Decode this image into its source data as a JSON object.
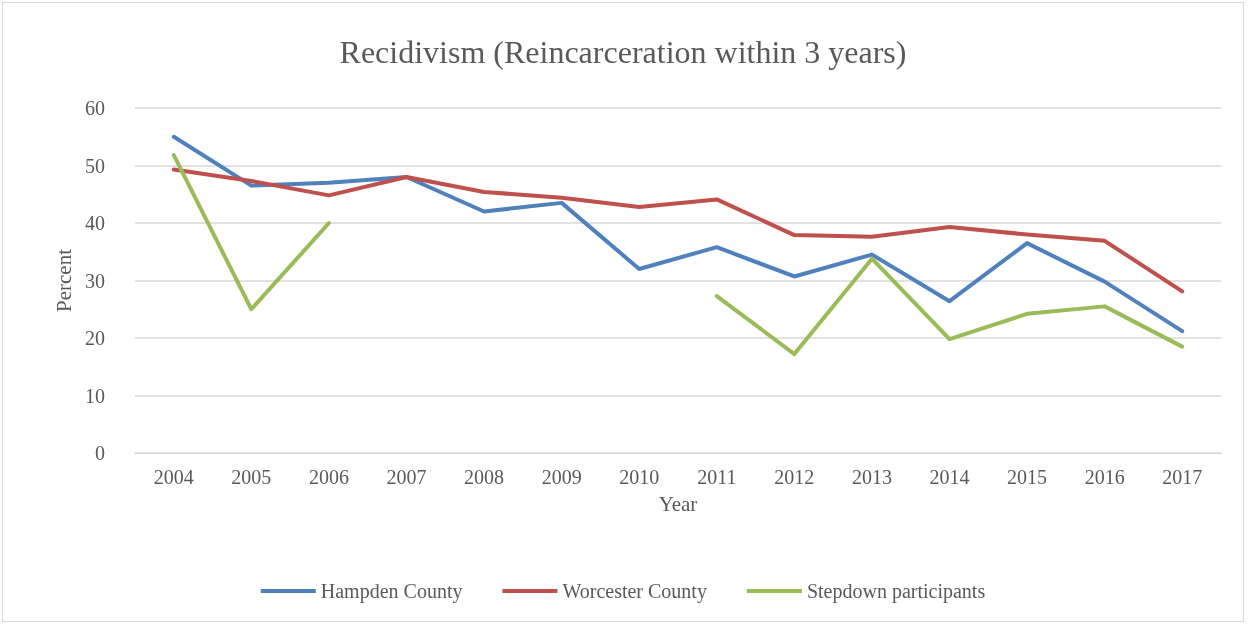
{
  "chart_data": {
    "type": "line",
    "title": "Recidivism (Reincarceration within 3 years)",
    "xlabel": "Year",
    "ylabel": "Percent",
    "categories": [
      "2004",
      "2005",
      "2006",
      "2007",
      "2008",
      "2009",
      "2010",
      "2011",
      "2012",
      "2013",
      "2014",
      "2015",
      "2016",
      "2017"
    ],
    "series": [
      {
        "name": "Hampden County",
        "color": "#4f81bd",
        "values": [
          55,
          46.5,
          47,
          48,
          42,
          43.5,
          32,
          35.8,
          30.7,
          34.5,
          26.4,
          36.5,
          29.8,
          21.2
        ]
      },
      {
        "name": "Worcester County",
        "color": "#c0504d",
        "values": [
          49.3,
          47.3,
          44.8,
          48,
          45.4,
          44.4,
          42.8,
          44.1,
          37.9,
          37.6,
          39.3,
          38,
          36.9,
          28.1
        ]
      },
      {
        "name": "Stepdown participants",
        "color": "#9bbb59",
        "values": [
          51.8,
          25,
          40,
          null,
          null,
          null,
          null,
          27.3,
          17.2,
          33.8,
          19.8,
          24.2,
          25.5,
          18.5
        ]
      }
    ],
    "ylim": [
      0,
      60
    ],
    "yticks": [
      0,
      10,
      20,
      30,
      40,
      50,
      60
    ],
    "grid": "y",
    "legend": "bottom",
    "marker": "none",
    "line_style": "solid"
  }
}
